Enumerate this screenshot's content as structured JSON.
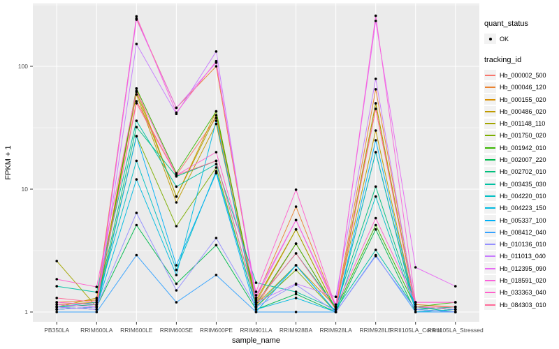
{
  "chart_data": {
    "type": "line",
    "title": "",
    "xlabel": "sample_name",
    "ylabel": "FPKM + 1",
    "y_scale": "log10",
    "y_ticks": [
      1,
      10,
      100
    ],
    "y_tick_labels": [
      "1",
      "10",
      "100"
    ],
    "y_minor_breaks": [
      3.162,
      31.62,
      316.2
    ],
    "ylim_log": [
      0.81,
      305
    ],
    "grid": true,
    "panel_bg": "#EBEBEB",
    "grid_color": "#FFFFFF",
    "tick_color": "#333333",
    "axis_text_color": "#4D4D4D",
    "point_color": "#000000",
    "legend_position": "right",
    "categories": [
      "PB350LA",
      "RRIM600LA",
      "RRIM600LE",
      "RRIM600SE",
      "RRIM600PE",
      "RRIM901LA",
      "RRIM928BA",
      "RRIM928LA",
      "RRIM928LE",
      "RRII105LA_Control",
      "RRII105LA_Stressed"
    ],
    "series": [
      {
        "name": "Hb_000002_500",
        "color": "#F8766D",
        "values": [
          1.1,
          1.15,
          52,
          13.0,
          38,
          1.1,
          3.6,
          1.05,
          45,
          1.1,
          1.05
        ]
      },
      {
        "name": "Hb_000046_120",
        "color": "#EA8331",
        "values": [
          1.2,
          1.25,
          245,
          46,
          100,
          1.3,
          7.2,
          1.1,
          65,
          1.15,
          1.1
        ]
      },
      {
        "name": "Hb_000155_020",
        "color": "#D89000",
        "values": [
          1.15,
          1.2,
          66,
          8.7,
          43,
          1.2,
          4.7,
          1.05,
          50,
          1.1,
          1.05
        ]
      },
      {
        "name": "Hb_000486_020",
        "color": "#C09B00",
        "values": [
          1.1,
          1.3,
          59,
          7.8,
          34,
          1.15,
          2.4,
          1.1,
          30,
          1.05,
          1.1
        ]
      },
      {
        "name": "Hb_001148_110",
        "color": "#A3A500",
        "values": [
          2.6,
          1.1,
          62,
          8.7,
          40,
          1.25,
          4.7,
          1.05,
          50,
          1.1,
          1.05
        ]
      },
      {
        "name": "Hb_001750_020",
        "color": "#7CAE00",
        "values": [
          1.05,
          1.1,
          27,
          5.0,
          15,
          1.1,
          2.2,
          1.0,
          20,
          1.05,
          1.0
        ]
      },
      {
        "name": "Hb_001942_010",
        "color": "#39B600",
        "values": [
          1.1,
          1.05,
          66,
          13.5,
          43,
          1.15,
          3.6,
          1.05,
          5.1,
          1.1,
          1.2
        ]
      },
      {
        "name": "Hb_002007_220",
        "color": "#00BB4E",
        "values": [
          1.05,
          1.1,
          5.1,
          1.7,
          3.5,
          1.05,
          1.4,
          1.0,
          4.7,
          1.0,
          1.05
        ]
      },
      {
        "name": "Hb_002702_010",
        "color": "#00BF7D",
        "values": [
          1.1,
          1.15,
          32,
          12.7,
          17,
          1.2,
          3.0,
          1.1,
          10.5,
          1.1,
          1.0
        ]
      },
      {
        "name": "Hb_003435_030",
        "color": "#00C1A3",
        "values": [
          1.62,
          1.45,
          36,
          10.5,
          16,
          1.73,
          1.46,
          1.05,
          3.2,
          1.05,
          1.1
        ]
      },
      {
        "name": "Hb_004220_010",
        "color": "#00BFC4",
        "values": [
          1.1,
          1.2,
          17,
          2.2,
          14,
          1.1,
          2.4,
          1.0,
          8.7,
          1.05,
          1.0
        ]
      },
      {
        "name": "Hb_004223_150",
        "color": "#00BAE0",
        "values": [
          1.05,
          1.1,
          12,
          2.0,
          36,
          1.05,
          1.3,
          1.0,
          20,
          1.0,
          1.05
        ]
      },
      {
        "name": "Hb_005337_100",
        "color": "#00B0F6",
        "values": [
          1.1,
          1.05,
          27,
          2.4,
          13.5,
          1.0,
          2.4,
          1.0,
          25,
          1.05,
          1.0
        ]
      },
      {
        "name": "Hb_008412_040",
        "color": "#35A2FF",
        "values": [
          1.0,
          1.0,
          2.9,
          1.2,
          2.0,
          1.0,
          1.0,
          1.0,
          2.9,
          1.0,
          1.0
        ]
      },
      {
        "name": "Hb_010136_010",
        "color": "#9590FF",
        "values": [
          1.05,
          1.1,
          6.4,
          1.5,
          4.0,
          1.1,
          1.67,
          1.0,
          2.85,
          1.05,
          1.0
        ]
      },
      {
        "name": "Hb_011013_040",
        "color": "#C77CFF",
        "values": [
          1.1,
          1.05,
          152,
          41,
          132,
          1.2,
          1.7,
          1.33,
          79,
          1.1,
          1.05
        ]
      },
      {
        "name": "Hb_012395_090",
        "color": "#E76BF3",
        "values": [
          1.15,
          1.1,
          240,
          46,
          107,
          1.37,
          5.6,
          1.15,
          234,
          2.31,
          1.62
        ]
      },
      {
        "name": "Hb_018591_020",
        "color": "#FA62DB",
        "values": [
          1.2,
          1.15,
          255,
          42,
          110,
          1.3,
          5.6,
          1.1,
          258,
          1.2,
          1.2
        ]
      },
      {
        "name": "Hb_033363_040",
        "color": "#FF61CC",
        "values": [
          1.85,
          1.6,
          63,
          13.0,
          20,
          1.46,
          9.9,
          1.1,
          5.8,
          1.2,
          1.2
        ]
      },
      {
        "name": "Hb_084303_010",
        "color": "#FF6A98",
        "values": [
          1.3,
          1.2,
          50,
          13.0,
          17,
          1.2,
          3.0,
          1.05,
          45,
          1.1,
          1.1
        ]
      }
    ]
  },
  "legend": {
    "quant_status": {
      "title": "quant_status",
      "items": [
        {
          "label": "OK",
          "symbol": "point"
        }
      ]
    },
    "tracking_id": {
      "title": "tracking_id"
    }
  }
}
